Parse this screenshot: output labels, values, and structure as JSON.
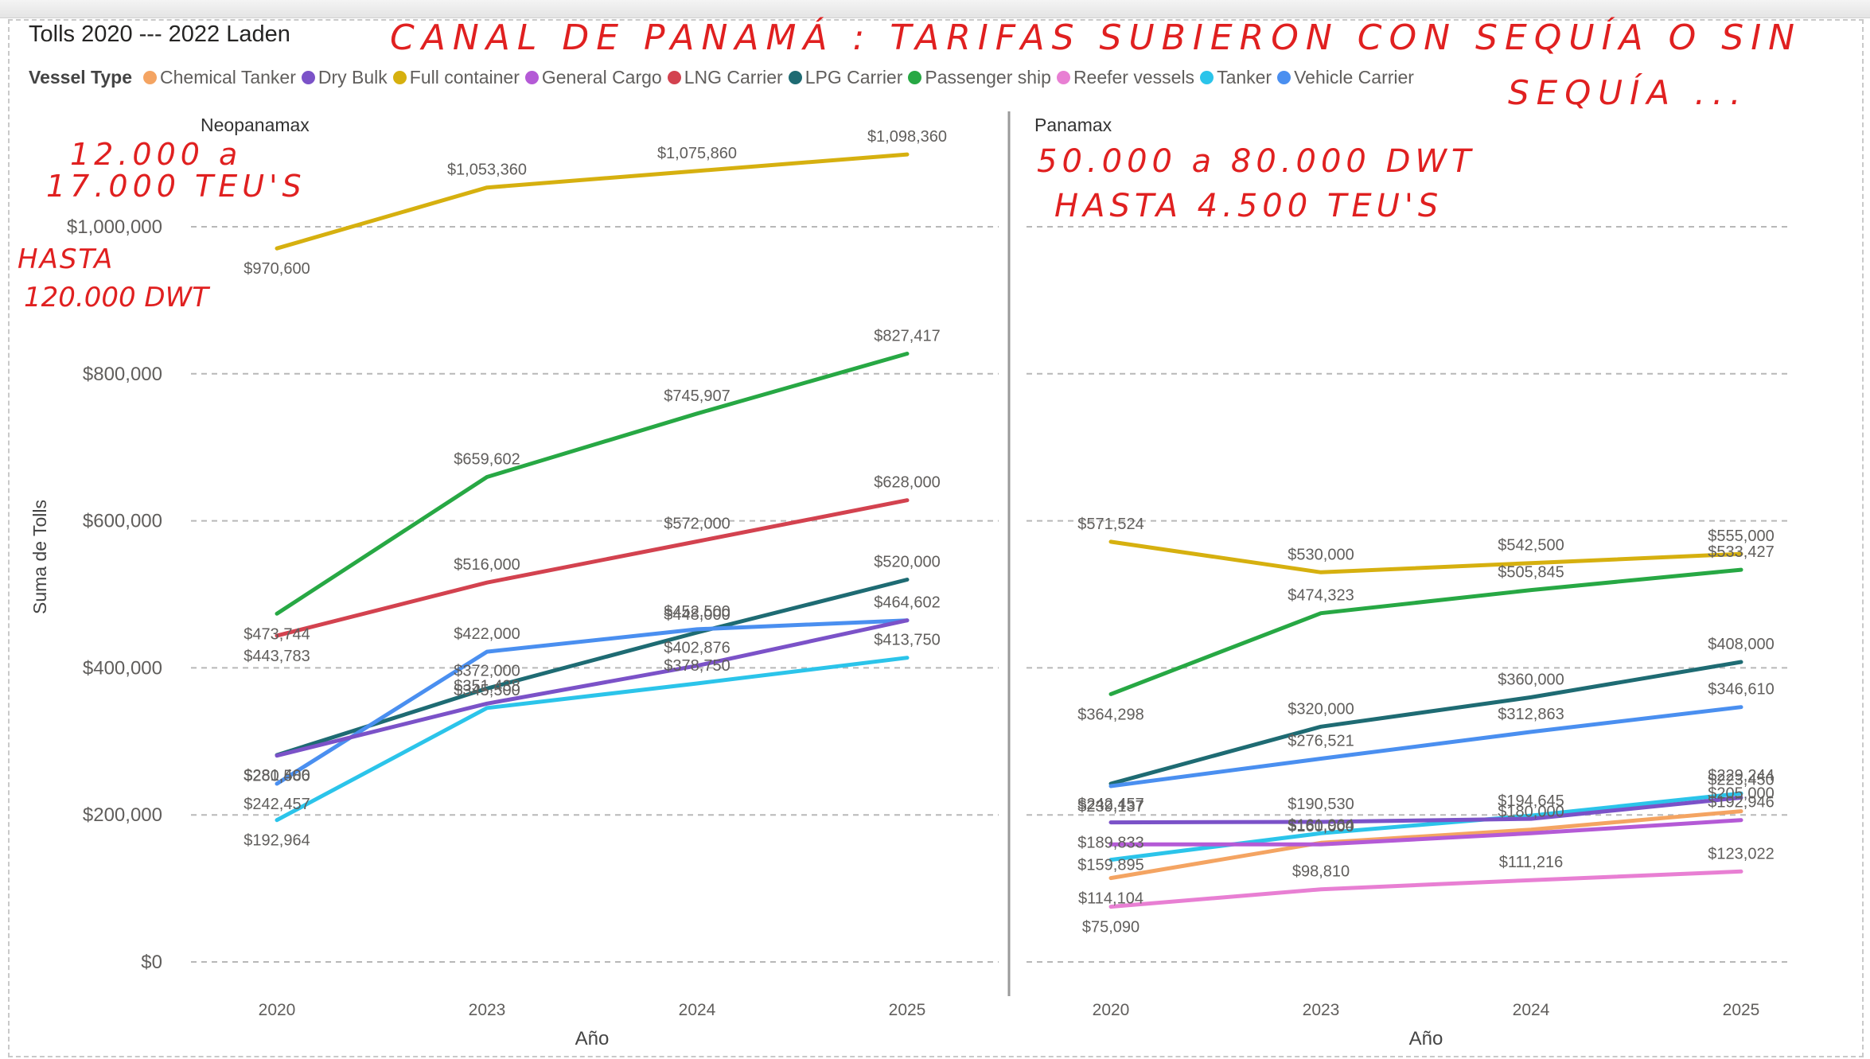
{
  "title": "Tolls 2020 --- 2022 Laden",
  "legend": {
    "title": "Vessel Type",
    "items": [
      {
        "name": "Chemical Tanker",
        "color": "#f4a462"
      },
      {
        "name": "Dry Bulk",
        "color": "#7b52c8"
      },
      {
        "name": "Full container",
        "color": "#d6b00f"
      },
      {
        "name": "General Cargo",
        "color": "#b45ad6"
      },
      {
        "name": "LNG Carrier",
        "color": "#d3424f"
      },
      {
        "name": "LPG Carrier",
        "color": "#1e6b73"
      },
      {
        "name": "Passenger ship",
        "color": "#27a844"
      },
      {
        "name": "Reefer vessels",
        "color": "#e87fd3"
      },
      {
        "name": "Tanker",
        "color": "#2bc4ea"
      },
      {
        "name": "Vehicle Carrier",
        "color": "#4a8ff0"
      }
    ]
  },
  "annotations": {
    "headline_line1": "CANAL DE PANAMÁ : TARIFAS SUBIERON CON SEQUÍA O SIN",
    "headline_line2": "SEQUÍA ...",
    "neo_note_1": "12.000 a",
    "neo_note_2": "17.000 TEU'S",
    "neo_note_3": "HASTA",
    "neo_note_4": "120.000 DWT",
    "pana_note_1": "50.000 a 80.000 DWT",
    "pana_note_2": "HASTA 4.500 TEU'S"
  },
  "chart_data": {
    "type": "line",
    "ylabel": "Suma de Tolls",
    "xlabel": "Año",
    "ylim": [
      0,
      1100000
    ],
    "yticks": [
      0,
      200000,
      400000,
      600000,
      800000,
      1000000
    ],
    "ytick_labels": [
      "$0",
      "$200,000",
      "$400,000",
      "$600,000",
      "$800,000",
      "$1,000,000"
    ],
    "grid": true,
    "legend_position": "top-left",
    "categories": [
      "2020",
      "2023",
      "2024",
      "2025"
    ],
    "panels": [
      {
        "name": "Neopanamax",
        "series": [
          {
            "name": "Full container",
            "values": [
              970600,
              1053360,
              1075860,
              1098360
            ],
            "labels": [
              "$970,600",
              "$1,053,360",
              "$1,075,860",
              "$1,098,360"
            ]
          },
          {
            "name": "Passenger ship",
            "values": [
              473744,
              659602,
              745907,
              827417
            ],
            "labels": [
              "$473,744",
              "$659,602",
              "$745,907",
              "$827,417"
            ]
          },
          {
            "name": "LNG Carrier",
            "values": [
              443783,
              516000,
              572000,
              628000
            ],
            "labels": [
              "$443,783",
              "$516,000",
              "$572,000",
              "$628,000"
            ]
          },
          {
            "name": "LPG Carrier",
            "values": [
              281400,
              372000,
              448000,
              520000
            ],
            "labels": [
              "$281,400",
              "$372,000",
              "$448,000",
              "$520,000"
            ]
          },
          {
            "name": "Vehicle Carrier",
            "values": [
              242457,
              422000,
              452500,
              464602
            ],
            "labels": [
              "$242,457",
              "$422,000",
              "$452,500",
              "$464,602"
            ]
          },
          {
            "name": "Dry Bulk",
            "values": [
              280586,
              351438,
              402876,
              464602
            ],
            "labels": [
              "$280,586",
              "$351,438",
              "$402,876",
              ""
            ]
          },
          {
            "name": "Tanker",
            "values": [
              192964,
              345500,
              378750,
              413750
            ],
            "labels": [
              "$192,964",
              "$345,500",
              "$378,750",
              "$413,750"
            ]
          }
        ]
      },
      {
        "name": "Panamax",
        "series": [
          {
            "name": "Full container",
            "values": [
              571524,
              530000,
              542500,
              555000
            ],
            "labels": [
              "$571,524",
              "$530,000",
              "$542,500",
              "$555,000"
            ]
          },
          {
            "name": "Passenger ship",
            "values": [
              364298,
              474323,
              505845,
              533427
            ],
            "labels": [
              "$364,298",
              "$474,323",
              "$505,845",
              "$533,427"
            ]
          },
          {
            "name": "LPG Carrier",
            "values": [
              242457,
              320000,
              360000,
              408000
            ],
            "labels": [
              "$242,457",
              "$320,000",
              "$360,000",
              "$408,000"
            ]
          },
          {
            "name": "Vehicle Carrier",
            "values": [
              239137,
              276521,
              312863,
              346610
            ],
            "labels": [
              "$239,137",
              "$276,521",
              "$312,863",
              "$346,610"
            ]
          },
          {
            "name": "Tanker",
            "values": [
              139000,
              175000,
              199000,
              229244
            ],
            "labels": [
              "",
              "",
              "",
              "$229,244"
            ]
          },
          {
            "name": "Chemical Tanker",
            "values": [
              114104,
              161964,
              180000,
              205000
            ],
            "labels": [
              "$114,104",
              "$161,964",
              "$180,000",
              "$205,000"
            ]
          },
          {
            "name": "Dry Bulk",
            "values": [
              189833,
              190530,
              194645,
              223450
            ],
            "labels": [
              "$189,833",
              "$190,530",
              "$194,645",
              "$223,450"
            ]
          },
          {
            "name": "General Cargo",
            "values": [
              159895,
              160000,
              175000,
              192946
            ],
            "labels": [
              "$159,895",
              "$160,000",
              "",
              "$192,946"
            ]
          },
          {
            "name": "Reefer vessels",
            "values": [
              75090,
              98810,
              111216,
              123022
            ],
            "labels": [
              "$75,090",
              "$98,810",
              "$111,216",
              "$123,022"
            ]
          }
        ]
      }
    ]
  }
}
